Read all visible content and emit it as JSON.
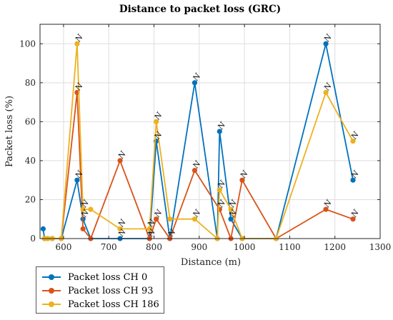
{
  "chart_data": {
    "type": "line",
    "title": "Distance to packet loss (GRC)",
    "xlabel": "Distance (m)",
    "ylabel": "Packet loss (%)",
    "xlim": [
      548,
      1300
    ],
    "ylim": [
      0,
      110
    ],
    "xticks": [
      600,
      700,
      800,
      900,
      1000,
      1100,
      1200,
      1300
    ],
    "yticks": [
      0,
      20,
      40,
      60,
      80,
      100
    ],
    "grid": true,
    "legend_position": "below-left",
    "marker_label": "N",
    "series": [
      {
        "name": "Packet loss CH 0",
        "color": "#0072bd",
        "points": [
          {
            "x": 555,
            "y": 5
          },
          {
            "x": 558,
            "y": 0
          },
          {
            "x": 565,
            "y": 0
          },
          {
            "x": 575,
            "y": 0
          },
          {
            "x": 595,
            "y": 0
          },
          {
            "x": 630,
            "y": 30,
            "label": "N"
          },
          {
            "x": 643,
            "y": 10,
            "label": "N"
          },
          {
            "x": 660,
            "y": 0
          },
          {
            "x": 725,
            "y": 0,
            "label": "N"
          },
          {
            "x": 790,
            "y": 0,
            "label": "N"
          },
          {
            "x": 805,
            "y": 50,
            "label": "N"
          },
          {
            "x": 835,
            "y": 0,
            "label": "N"
          },
          {
            "x": 890,
            "y": 80,
            "label": "N"
          },
          {
            "x": 940,
            "y": 0
          },
          {
            "x": 945,
            "y": 55,
            "label": "N"
          },
          {
            "x": 970,
            "y": 10,
            "label": "N"
          },
          {
            "x": 995,
            "y": 0
          },
          {
            "x": 1070,
            "y": 0
          },
          {
            "x": 1180,
            "y": 100,
            "label": "N"
          },
          {
            "x": 1240,
            "y": 30,
            "label": "N"
          }
        ]
      },
      {
        "name": "Packet loss CH 93",
        "color": "#d95319",
        "points": [
          {
            "x": 558,
            "y": 0
          },
          {
            "x": 565,
            "y": 0
          },
          {
            "x": 575,
            "y": 0
          },
          {
            "x": 595,
            "y": 0
          },
          {
            "x": 630,
            "y": 75,
            "label": "N"
          },
          {
            "x": 643,
            "y": 5
          },
          {
            "x": 660,
            "y": 0
          },
          {
            "x": 725,
            "y": 40,
            "label": "N"
          },
          {
            "x": 790,
            "y": 0
          },
          {
            "x": 805,
            "y": 10,
            "label": "N"
          },
          {
            "x": 835,
            "y": 0
          },
          {
            "x": 890,
            "y": 35,
            "label": "N"
          },
          {
            "x": 945,
            "y": 15,
            "label": "N"
          },
          {
            "x": 970,
            "y": 0
          },
          {
            "x": 995,
            "y": 30,
            "label": "N"
          },
          {
            "x": 1070,
            "y": 0
          },
          {
            "x": 1180,
            "y": 15,
            "label": "N"
          },
          {
            "x": 1240,
            "y": 10,
            "label": "N"
          }
        ]
      },
      {
        "name": "Packet loss CH 186",
        "color": "#edb120",
        "points": [
          {
            "x": 558,
            "y": 0
          },
          {
            "x": 565,
            "y": 0
          },
          {
            "x": 575,
            "y": 0
          },
          {
            "x": 595,
            "y": 0
          },
          {
            "x": 630,
            "y": 100,
            "label": "N"
          },
          {
            "x": 643,
            "y": 15,
            "label": "N"
          },
          {
            "x": 660,
            "y": 15
          },
          {
            "x": 725,
            "y": 5,
            "label": "N"
          },
          {
            "x": 790,
            "y": 5,
            "label": "N"
          },
          {
            "x": 805,
            "y": 60,
            "label": "N"
          },
          {
            "x": 835,
            "y": 10
          },
          {
            "x": 890,
            "y": 10,
            "label": "N"
          },
          {
            "x": 940,
            "y": 0
          },
          {
            "x": 945,
            "y": 25,
            "label": "N"
          },
          {
            "x": 970,
            "y": 15,
            "label": "N"
          },
          {
            "x": 995,
            "y": 0
          },
          {
            "x": 1070,
            "y": 0
          },
          {
            "x": 1180,
            "y": 75,
            "label": "N"
          },
          {
            "x": 1240,
            "y": 50,
            "label": "N"
          }
        ]
      }
    ]
  }
}
